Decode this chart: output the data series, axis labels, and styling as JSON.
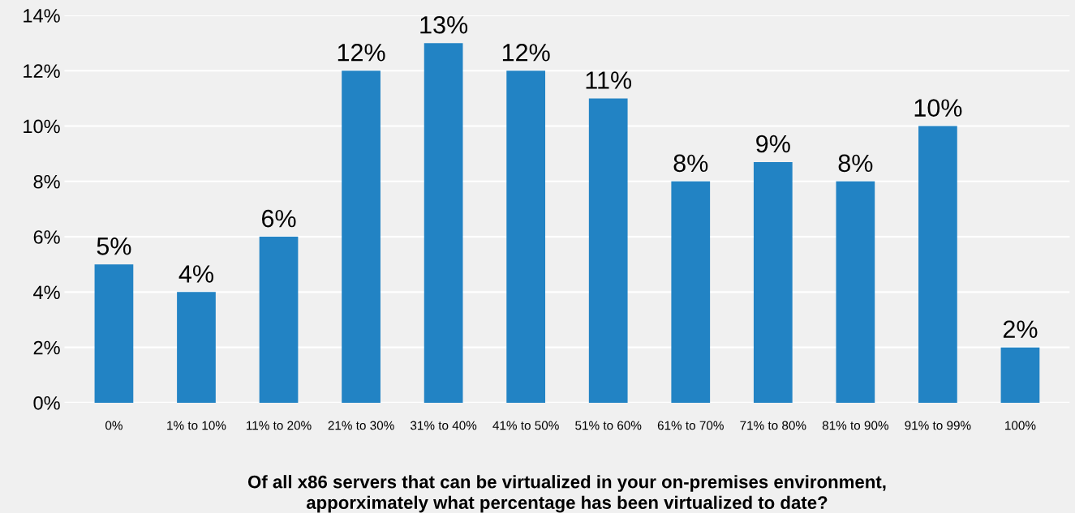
{
  "chart_data": {
    "type": "bar",
    "xlabel": "Of all x86 servers that can be virtualized in your on-premises environment,\napporximately what percentage has been virtualized to date?",
    "categories": [
      "0%",
      "1% to 10%",
      "11% to 20%",
      "21% to 30%",
      "31% to 40%",
      "41% to 50%",
      "51% to 60%",
      "61% to 70%",
      "71% to 80%",
      "81% to 90%",
      "91% to 99%",
      "100%"
    ],
    "values": [
      5,
      4,
      6,
      12,
      13,
      12,
      11,
      8,
      8.7,
      8,
      10,
      2
    ],
    "value_labels": [
      "5%",
      "4%",
      "6%",
      "12%",
      "13%",
      "12%",
      "11%",
      "8%",
      "9%",
      "8%",
      "10%",
      "2%"
    ],
    "color": "#2283c4",
    "ylim": [
      0,
      14
    ],
    "yticks": [
      {
        "value": 0,
        "label": "0%"
      },
      {
        "value": 2,
        "label": "2%"
      },
      {
        "value": 4,
        "label": "4%"
      },
      {
        "value": 6,
        "label": "6%"
      },
      {
        "value": 8,
        "label": "8%"
      },
      {
        "value": 10,
        "label": "10%"
      },
      {
        "value": 12,
        "label": "12%"
      },
      {
        "value": 14,
        "label": "14%"
      }
    ],
    "grid": "y"
  }
}
